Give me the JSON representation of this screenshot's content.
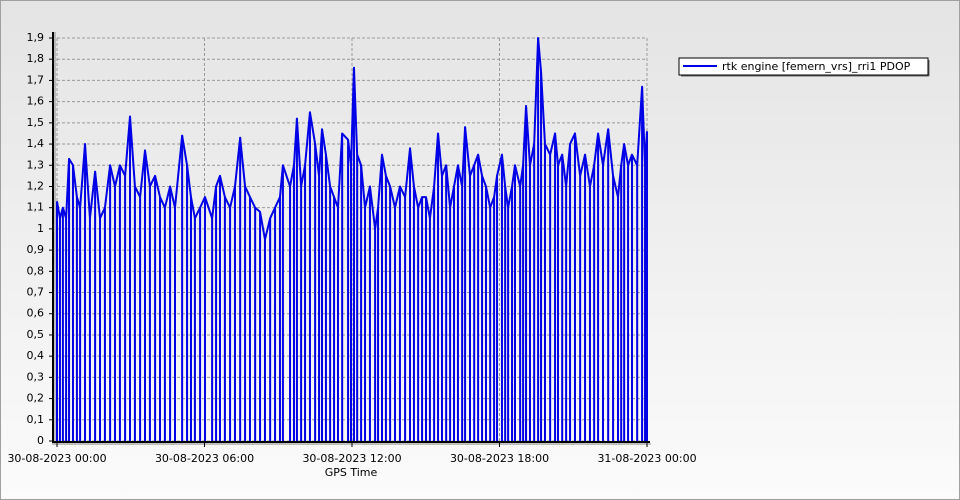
{
  "chart_data": {
    "type": "line",
    "xlabel": "GPS Time",
    "xlim": [
      0,
      24
    ],
    "xticks": [
      {
        "value": 0,
        "label": "30-08-2023 00:00"
      },
      {
        "value": 6,
        "label": "30-08-2023 06:00"
      },
      {
        "value": 12,
        "label": "30-08-2023 12:00"
      },
      {
        "value": 18,
        "label": "30-08-2023 18:00"
      },
      {
        "value": 24,
        "label": "31-08-2023 00:00"
      }
    ],
    "ylim": [
      0,
      1.9
    ],
    "yticks": [
      0,
      {
        "value": 0.1,
        "label": "0,1"
      },
      {
        "value": 0.2,
        "label": "0,2"
      },
      {
        "value": 0.3,
        "label": "0,3"
      },
      {
        "value": 0.4,
        "label": "0,4"
      },
      {
        "value": 0.5,
        "label": "0,5"
      },
      {
        "value": 0.6,
        "label": "0,6"
      },
      {
        "value": 0.7,
        "label": "0,7"
      },
      {
        "value": 0.8,
        "label": "0,8"
      },
      {
        "value": 0.9,
        "label": "0,9"
      },
      1,
      {
        "value": 1.1,
        "label": "1,1"
      },
      {
        "value": 1.2,
        "label": "1,2"
      },
      {
        "value": 1.3,
        "label": "1,3"
      },
      {
        "value": 1.4,
        "label": "1,4"
      },
      {
        "value": 1.5,
        "label": "1,5"
      },
      {
        "value": 1.6,
        "label": "1,6"
      },
      {
        "value": 1.7,
        "label": "1,7"
      },
      {
        "value": 1.8,
        "label": "1,8"
      },
      {
        "value": 1.9,
        "label": "1,9"
      }
    ],
    "grid": true,
    "drop_lines": true,
    "legend": "upper right",
    "x": [
      0,
      0.12,
      0.24,
      0.37,
      0.49,
      0.65,
      0.81,
      0.94,
      1.14,
      1.34,
      1.55,
      1.75,
      1.95,
      2.16,
      2.36,
      2.56,
      2.77,
      2.97,
      3.17,
      3.38,
      3.58,
      3.78,
      3.99,
      4.19,
      4.39,
      4.6,
      4.8,
      5.09,
      5.29,
      5.45,
      5.61,
      5.82,
      6.02,
      6.31,
      6.47,
      6.63,
      6.83,
      7.04,
      7.24,
      7.45,
      7.65,
      7.85,
      8.06,
      8.26,
      8.46,
      8.67,
      8.87,
      9.07,
      9.19,
      9.48,
      9.64,
      9.76,
      9.93,
      10.09,
      10.29,
      10.5,
      10.66,
      10.78,
      10.94,
      11.11,
      11.27,
      11.43,
      11.6,
      11.84,
      11.96,
      12.08,
      12.21,
      12.37,
      12.53,
      12.73,
      12.94,
      13.06,
      13.22,
      13.38,
      13.55,
      13.75,
      13.95,
      14.16,
      14.36,
      14.52,
      14.69,
      14.85,
      15.01,
      15.17,
      15.34,
      15.5,
      15.66,
      15.83,
      15.99,
      16.15,
      16.31,
      16.48,
      16.6,
      16.8,
      16.97,
      17.13,
      17.29,
      17.45,
      17.62,
      17.78,
      17.9,
      18.1,
      18.23,
      18.35,
      18.51,
      18.63,
      18.84,
      18.96,
      19.08,
      19.24,
      19.41,
      19.57,
      19.69,
      19.85,
      20.06,
      20.26,
      20.38,
      20.55,
      20.71,
      20.87,
      21.07,
      21.28,
      21.48,
      21.68,
      21.85,
      22.01,
      22.21,
      22.42,
      22.62,
      22.82,
      22.95,
      23.07,
      23.23,
      23.39,
      23.6,
      23.8,
      23.92,
      24
    ],
    "series": [
      {
        "name": "rtk engine [femern_vrs]_rri1 PDOP",
        "color": "#0000e6",
        "values": [
          1.13,
          1.05,
          1.1,
          1.05,
          1.33,
          1.3,
          1.15,
          1.1,
          1.4,
          1.05,
          1.27,
          1.05,
          1.1,
          1.3,
          1.2,
          1.3,
          1.25,
          1.53,
          1.2,
          1.15,
          1.37,
          1.2,
          1.25,
          1.15,
          1.1,
          1.2,
          1.1,
          1.44,
          1.3,
          1.15,
          1.05,
          1.1,
          1.15,
          1.05,
          1.2,
          1.25,
          1.15,
          1.1,
          1.2,
          1.43,
          1.2,
          1.15,
          1.1,
          1.08,
          0.95,
          1.05,
          1.1,
          1.15,
          1.3,
          1.2,
          1.3,
          1.52,
          1.2,
          1.3,
          1.55,
          1.4,
          1.25,
          1.47,
          1.35,
          1.2,
          1.15,
          1.1,
          1.45,
          1.42,
          1.3,
          1.76,
          1.35,
          1.3,
          1.1,
          1.2,
          1.0,
          1.1,
          1.35,
          1.25,
          1.2,
          1.1,
          1.2,
          1.15,
          1.38,
          1.2,
          1.1,
          1.15,
          1.15,
          1.05,
          1.2,
          1.45,
          1.25,
          1.3,
          1.1,
          1.2,
          1.3,
          1.2,
          1.48,
          1.25,
          1.3,
          1.35,
          1.25,
          1.2,
          1.1,
          1.15,
          1.25,
          1.35,
          1.2,
          1.1,
          1.2,
          1.3,
          1.2,
          1.3,
          1.58,
          1.3,
          1.4,
          1.9,
          1.74,
          1.4,
          1.35,
          1.45,
          1.3,
          1.35,
          1.2,
          1.4,
          1.45,
          1.25,
          1.35,
          1.2,
          1.3,
          1.45,
          1.3,
          1.47,
          1.25,
          1.15,
          1.3,
          1.4,
          1.3,
          1.35,
          1.3,
          1.67,
          1.3,
          1.46
        ]
      }
    ]
  }
}
